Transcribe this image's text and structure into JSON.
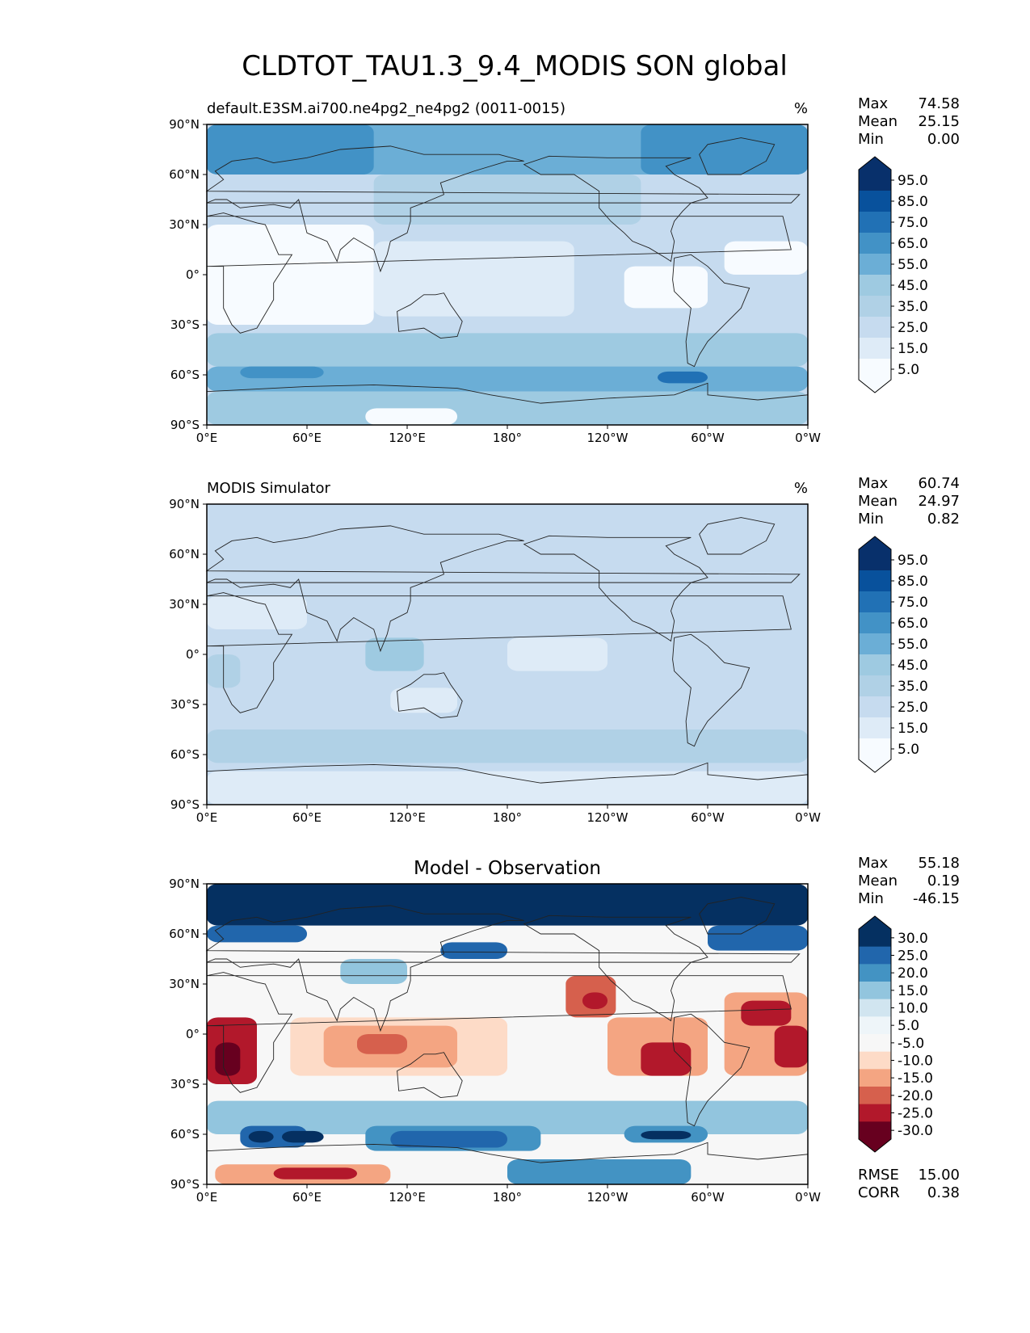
{
  "figure": {
    "title": "CLDTOT_TAU1.3_9.4_MODIS SON global"
  },
  "chart_data": [
    {
      "type": "heatmap",
      "title_left": "default.E3SM.ai700.ne4pg2_ne4pg2 (0011-0015)",
      "title_center": "",
      "units": "%",
      "xticks": [
        "0°E",
        "60°E",
        "120°E",
        "180°",
        "120°W",
        "60°W",
        "0°W"
      ],
      "yticks": [
        "90°N",
        "60°N",
        "30°N",
        "0°",
        "30°S",
        "60°S",
        "90°S"
      ],
      "xlim": [
        0,
        360
      ],
      "ylim": [
        -90,
        90
      ],
      "stats": [
        {
          "label": "Max",
          "value": "74.58"
        },
        {
          "label": "Mean",
          "value": "25.15"
        },
        {
          "label": "Min",
          "value": "0.00"
        }
      ],
      "colorbar": {
        "levels": [
          "95.0",
          "85.0",
          "75.0",
          "65.0",
          "55.0",
          "45.0",
          "35.0",
          "25.0",
          "15.0",
          "5.0"
        ],
        "colors": [
          "#08306b",
          "#08519c",
          "#2171b5",
          "#4292c6",
          "#6baed6",
          "#9ecae1",
          "#b0d1e6",
          "#c6dbef",
          "#deebf7",
          "#f7fbff"
        ]
      },
      "field": {
        "base": "#c6dbef",
        "regions": [
          {
            "lon": [
              0,
              360
            ],
            "lat": [
              60,
              90
            ],
            "color": "#6baed6"
          },
          {
            "lon": [
              0,
              100
            ],
            "lat": [
              60,
              90
            ],
            "color": "#4292c6"
          },
          {
            "lon": [
              260,
              360
            ],
            "lat": [
              60,
              90
            ],
            "color": "#4292c6"
          },
          {
            "lon": [
              100,
              260
            ],
            "lat": [
              30,
              60
            ],
            "color": "#b0d1e6"
          },
          {
            "lon": [
              0,
              100
            ],
            "lat": [
              -30,
              30
            ],
            "color": "#f7fbff"
          },
          {
            "lon": [
              100,
              220
            ],
            "lat": [
              -25,
              20
            ],
            "color": "#deebf7"
          },
          {
            "lon": [
              250,
              300
            ],
            "lat": [
              -20,
              5
            ],
            "color": "#f7fbff"
          },
          {
            "lon": [
              310,
              360
            ],
            "lat": [
              0,
              20
            ],
            "color": "#f7fbff"
          },
          {
            "lon": [
              0,
              360
            ],
            "lat": [
              -55,
              -35
            ],
            "color": "#9ecae1"
          },
          {
            "lon": [
              0,
              360
            ],
            "lat": [
              -70,
              -55
            ],
            "color": "#6baed6"
          },
          {
            "lon": [
              20,
              70
            ],
            "lat": [
              -62,
              -55
            ],
            "color": "#4292c6"
          },
          {
            "lon": [
              270,
              300
            ],
            "lat": [
              -65,
              -58
            ],
            "color": "#2171b5"
          },
          {
            "lon": [
              0,
              360
            ],
            "lat": [
              -90,
              -70
            ],
            "color": "#9ecae1"
          },
          {
            "lon": [
              95,
              150
            ],
            "lat": [
              -90,
              -80
            ],
            "color": "#f7fbff"
          }
        ]
      }
    },
    {
      "type": "heatmap",
      "title_left": "MODIS Simulator",
      "title_center": "",
      "units": "%",
      "xticks": [
        "0°E",
        "60°E",
        "120°E",
        "180°",
        "120°W",
        "60°W",
        "0°W"
      ],
      "yticks": [
        "90°N",
        "60°N",
        "30°N",
        "0°",
        "30°S",
        "60°S",
        "90°S"
      ],
      "xlim": [
        0,
        360
      ],
      "ylim": [
        -90,
        90
      ],
      "stats": [
        {
          "label": "Max",
          "value": "60.74"
        },
        {
          "label": "Mean",
          "value": "24.97"
        },
        {
          "label": "Min",
          "value": "0.82"
        }
      ],
      "colorbar": {
        "levels": [
          "95.0",
          "85.0",
          "75.0",
          "65.0",
          "55.0",
          "45.0",
          "35.0",
          "25.0",
          "15.0",
          "5.0"
        ],
        "colors": [
          "#08306b",
          "#08519c",
          "#2171b5",
          "#4292c6",
          "#6baed6",
          "#9ecae1",
          "#b0d1e6",
          "#c6dbef",
          "#deebf7",
          "#f7fbff"
        ]
      },
      "field": {
        "base": "#c6dbef",
        "regions": [
          {
            "lon": [
              0,
              60
            ],
            "lat": [
              15,
              35
            ],
            "color": "#deebf7"
          },
          {
            "lon": [
              110,
              150
            ],
            "lat": [
              -35,
              -20
            ],
            "color": "#deebf7"
          },
          {
            "lon": [
              180,
              240
            ],
            "lat": [
              -10,
              10
            ],
            "color": "#deebf7"
          },
          {
            "lon": [
              0,
              360
            ],
            "lat": [
              -65,
              -45
            ],
            "color": "#b0d1e6"
          },
          {
            "lon": [
              95,
              130
            ],
            "lat": [
              -10,
              10
            ],
            "color": "#9ecae1"
          },
          {
            "lon": [
              0,
              20
            ],
            "lat": [
              -20,
              0
            ],
            "color": "#b0d1e6"
          },
          {
            "lon": [
              0,
              360
            ],
            "lat": [
              -90,
              -70
            ],
            "color": "#deebf7"
          }
        ]
      }
    },
    {
      "type": "heatmap",
      "title_left": "",
      "title_center": "Model - Observation",
      "units": "",
      "xticks": [
        "0°E",
        "60°E",
        "120°E",
        "180°",
        "120°W",
        "60°W",
        "0°W"
      ],
      "yticks": [
        "90°N",
        "60°N",
        "30°N",
        "0°",
        "30°S",
        "60°S",
        "90°S"
      ],
      "xlim": [
        0,
        360
      ],
      "ylim": [
        -90,
        90
      ],
      "stats": [
        {
          "label": "Max",
          "value": "55.18"
        },
        {
          "label": "Mean",
          "value": "0.19"
        },
        {
          "label": "Min",
          "value": "-46.15"
        }
      ],
      "extra_stats": [
        {
          "label": "RMSE",
          "value": "15.00"
        },
        {
          "label": "CORR",
          "value": "0.38"
        }
      ],
      "colorbar": {
        "levels": [
          "30.0",
          "25.0",
          "20.0",
          "15.0",
          "10.0",
          "5.0",
          "-5.0",
          "-10.0",
          "-15.0",
          "-20.0",
          "-25.0",
          "-30.0"
        ],
        "colors": [
          "#053061",
          "#2166ac",
          "#4393c3",
          "#92c5de",
          "#d1e5f0",
          "#eef5f9",
          "#f7f7f7",
          "#fddbc7",
          "#f4a582",
          "#d6604d",
          "#b2182b",
          "#67001f"
        ]
      },
      "field": {
        "base": "#f7f7f7",
        "regions": [
          {
            "lon": [
              0,
              360
            ],
            "lat": [
              65,
              90
            ],
            "color": "#053061"
          },
          {
            "lon": [
              0,
              60
            ],
            "lat": [
              55,
              65
            ],
            "color": "#2166ac"
          },
          {
            "lon": [
              140,
              180
            ],
            "lat": [
              45,
              55
            ],
            "color": "#2166ac"
          },
          {
            "lon": [
              300,
              360
            ],
            "lat": [
              50,
              65
            ],
            "color": "#2166ac"
          },
          {
            "lon": [
              80,
              120
            ],
            "lat": [
              30,
              45
            ],
            "color": "#92c5de"
          },
          {
            "lon": [
              0,
              30
            ],
            "lat": [
              -30,
              10
            ],
            "color": "#b2182b"
          },
          {
            "lon": [
              5,
              20
            ],
            "lat": [
              -25,
              -5
            ],
            "color": "#67001f"
          },
          {
            "lon": [
              50,
              180
            ],
            "lat": [
              -25,
              10
            ],
            "color": "#fddbc7"
          },
          {
            "lon": [
              70,
              150
            ],
            "lat": [
              -20,
              5
            ],
            "color": "#f4a582"
          },
          {
            "lon": [
              90,
              120
            ],
            "lat": [
              -12,
              0
            ],
            "color": "#d6604d"
          },
          {
            "lon": [
              215,
              245
            ],
            "lat": [
              10,
              35
            ],
            "color": "#d6604d"
          },
          {
            "lon": [
              225,
              240
            ],
            "lat": [
              15,
              25
            ],
            "color": "#b2182b"
          },
          {
            "lon": [
              240,
              300
            ],
            "lat": [
              -25,
              10
            ],
            "color": "#f4a582"
          },
          {
            "lon": [
              260,
              290
            ],
            "lat": [
              -25,
              -5
            ],
            "color": "#b2182b"
          },
          {
            "lon": [
              310,
              360
            ],
            "lat": [
              -25,
              25
            ],
            "color": "#f4a582"
          },
          {
            "lon": [
              320,
              350
            ],
            "lat": [
              5,
              20
            ],
            "color": "#b2182b"
          },
          {
            "lon": [
              340,
              360
            ],
            "lat": [
              -20,
              5
            ],
            "color": "#b2182b"
          },
          {
            "lon": [
              0,
              360
            ],
            "lat": [
              -60,
              -40
            ],
            "color": "#92c5de"
          },
          {
            "lon": [
              20,
              60
            ],
            "lat": [
              -68,
              -55
            ],
            "color": "#2166ac"
          },
          {
            "lon": [
              25,
              40
            ],
            "lat": [
              -65,
              -58
            ],
            "color": "#053061"
          },
          {
            "lon": [
              45,
              70
            ],
            "lat": [
              -65,
              -58
            ],
            "color": "#053061"
          },
          {
            "lon": [
              95,
              200
            ],
            "lat": [
              -70,
              -55
            ],
            "color": "#4393c3"
          },
          {
            "lon": [
              110,
              180
            ],
            "lat": [
              -68,
              -58
            ],
            "color": "#2166ac"
          },
          {
            "lon": [
              250,
              300
            ],
            "lat": [
              -65,
              -55
            ],
            "color": "#4393c3"
          },
          {
            "lon": [
              260,
              290
            ],
            "lat": [
              -63,
              -58
            ],
            "color": "#053061"
          },
          {
            "lon": [
              5,
              110
            ],
            "lat": [
              -90,
              -78
            ],
            "color": "#f4a582"
          },
          {
            "lon": [
              40,
              90
            ],
            "lat": [
              -87,
              -80
            ],
            "color": "#b2182b"
          },
          {
            "lon": [
              180,
              290
            ],
            "lat": [
              -90,
              -75
            ],
            "color": "#4393c3"
          }
        ]
      }
    }
  ]
}
